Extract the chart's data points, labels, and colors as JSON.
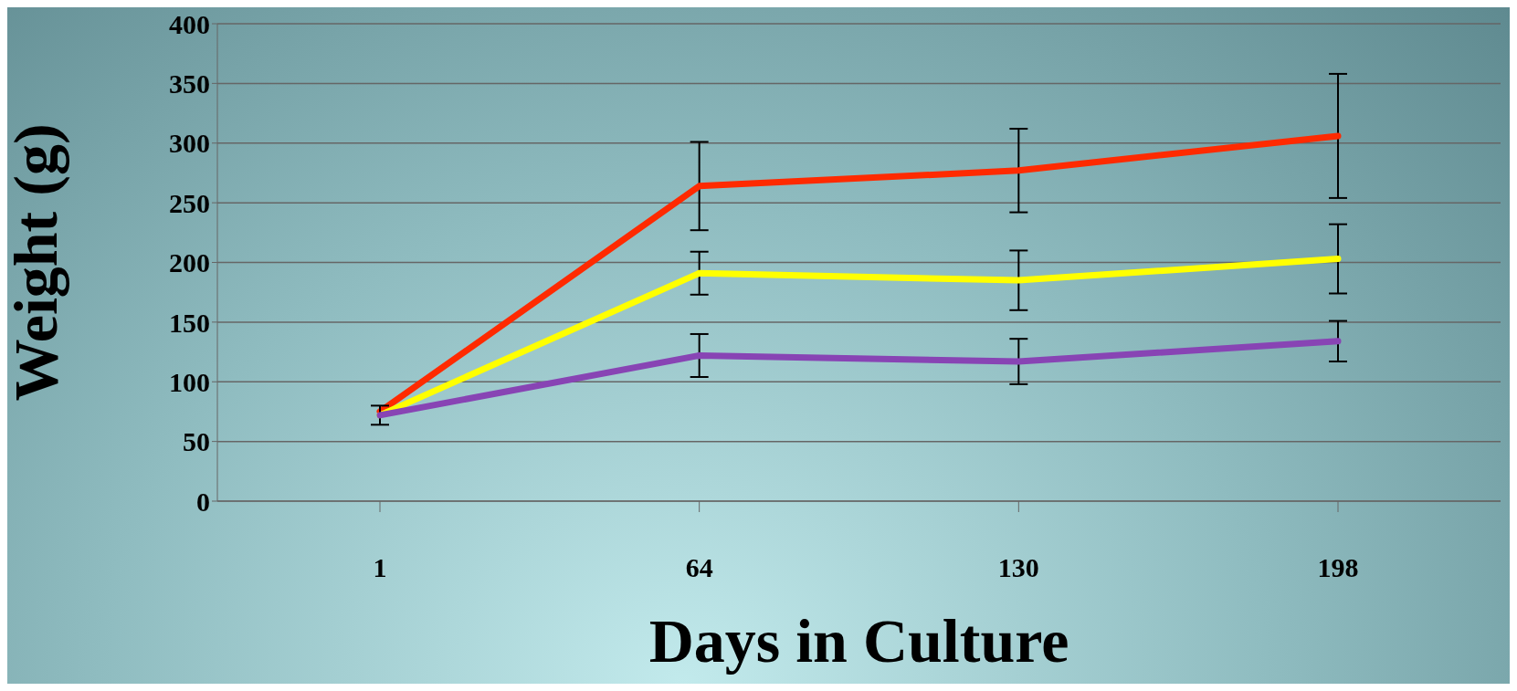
{
  "chart_data": {
    "type": "line",
    "xlabel": "Days in Culture",
    "ylabel": "Weight (g)",
    "categories": [
      "1",
      "64",
      "130",
      "198"
    ],
    "series": [
      {
        "color": "#ff2a00",
        "values": [
          75,
          264,
          277,
          306
        ],
        "errors": [
          null,
          37,
          35,
          52
        ]
      },
      {
        "color": "#ffff00",
        "values": [
          72,
          191,
          185,
          203
        ],
        "errors": [
          null,
          18,
          25,
          29
        ]
      },
      {
        "color": "#8844b4",
        "values": [
          72,
          122,
          117,
          134
        ],
        "errors": [
          8,
          18,
          19,
          17
        ]
      }
    ],
    "ylim": [
      0,
      400
    ],
    "yticks": [
      0,
      50,
      100,
      150,
      200,
      250,
      300,
      350,
      400
    ],
    "grid": "y",
    "legend": false,
    "marker": "none",
    "line_style": "solid"
  }
}
